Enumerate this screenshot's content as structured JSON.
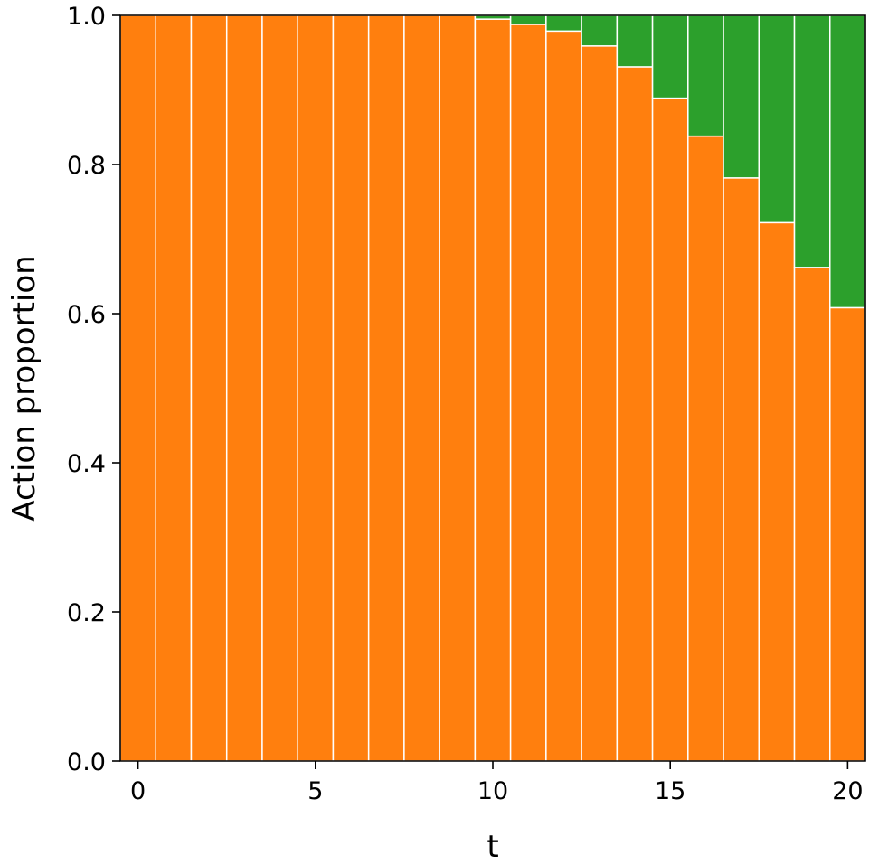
{
  "chart_data": {
    "type": "bar",
    "stacked": true,
    "title": "",
    "xlabel": "t",
    "ylabel": "Action proportion",
    "x": [
      0,
      1,
      2,
      3,
      4,
      5,
      6,
      7,
      8,
      9,
      10,
      11,
      12,
      13,
      14,
      15,
      16,
      17,
      18,
      19,
      20
    ],
    "xlim": [
      -0.5,
      20.5
    ],
    "ylim": [
      0.0,
      1.0
    ],
    "xticks": [
      0,
      5,
      10,
      15,
      20
    ],
    "xtick_labels": [
      "0",
      "5",
      "10",
      "15",
      "20"
    ],
    "yticks": [
      0.0,
      0.2,
      0.4,
      0.6,
      0.8,
      1.0
    ],
    "ytick_labels": [
      "0.0",
      "0.2",
      "0.4",
      "0.6",
      "0.8",
      "1.0"
    ],
    "grid": false,
    "series": [
      {
        "color": "#ff7f0e",
        "values": [
          1.0,
          1.0,
          1.0,
          1.0,
          1.0,
          1.0,
          1.0,
          1.0,
          1.0,
          1.0,
          0.995,
          0.988,
          0.979,
          0.959,
          0.931,
          0.889,
          0.838,
          0.782,
          0.722,
          0.662,
          0.608
        ]
      },
      {
        "color": "#2ca02c",
        "values": [
          0.0,
          0.0,
          0.0,
          0.0,
          0.0,
          0.0,
          0.0,
          0.0,
          0.0,
          0.0,
          0.005,
          0.012,
          0.021,
          0.041,
          0.069,
          0.111,
          0.162,
          0.218,
          0.278,
          0.338,
          0.392
        ]
      }
    ]
  }
}
